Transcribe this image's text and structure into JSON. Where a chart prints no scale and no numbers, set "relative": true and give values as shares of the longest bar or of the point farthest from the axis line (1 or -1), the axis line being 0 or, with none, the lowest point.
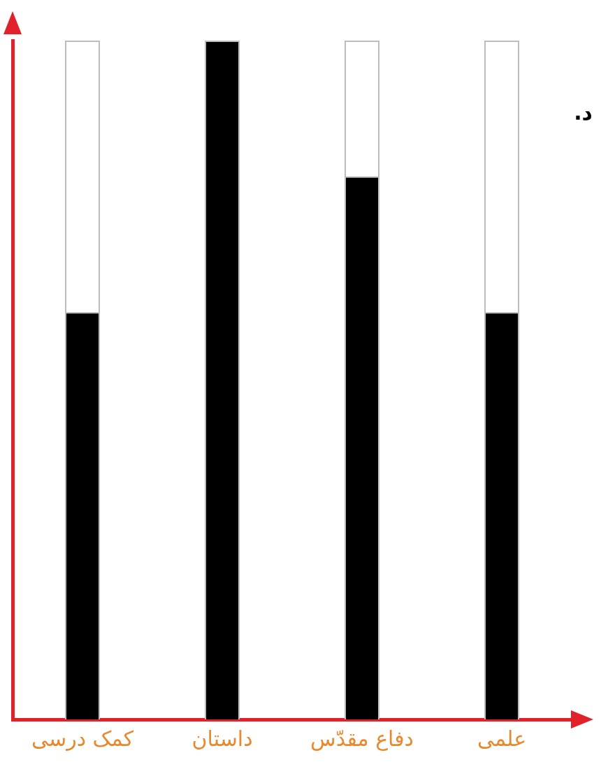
{
  "chart_data": {
    "type": "bar",
    "relative": true,
    "stacked": true,
    "legend": false,
    "grid": false,
    "categories": [
      "کمک درسی",
      "داستان",
      "دفاع مقدّس",
      "علمی"
    ],
    "series": [
      {
        "color": "#000000",
        "values": [
          0.6,
          1,
          0.8,
          0.6
        ]
      },
      {
        "color": "#ffffff",
        "values": [
          0.4,
          0,
          0.2,
          0.4
        ]
      }
    ],
    "annotations": [
      "د."
    ]
  }
}
